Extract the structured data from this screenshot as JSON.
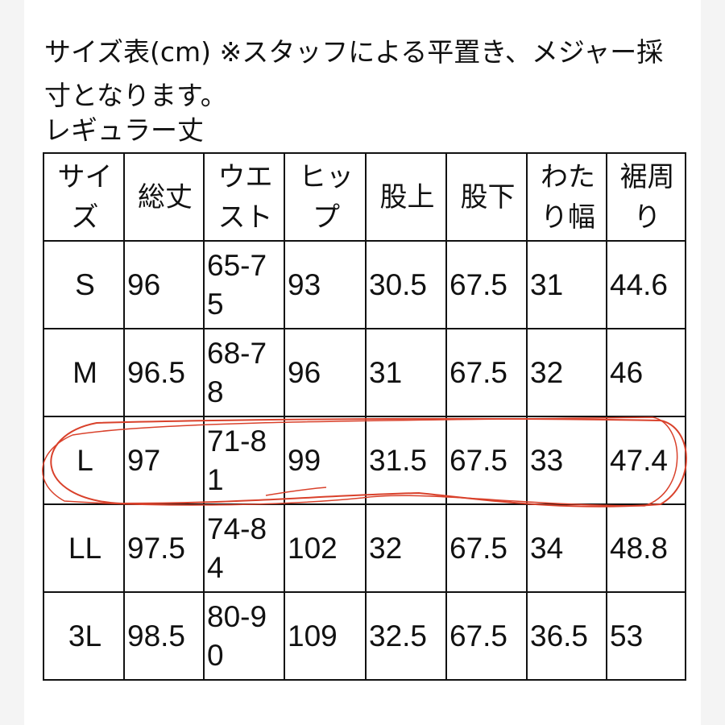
{
  "intro": "サイズ表(cm) ※スタッフによる平置き、メジャー採寸となります。",
  "subtitle": "レギュラー丈",
  "table": {
    "headers": [
      "サイズ",
      "総丈",
      "ウエスト",
      "ヒップ",
      "股上",
      "股下",
      "わたり幅",
      "裾周り"
    ],
    "rows": [
      [
        "S",
        "96",
        "65-75",
        "93",
        "30.5",
        "67.5",
        "31",
        "44.6"
      ],
      [
        "M",
        "96.5",
        "68-78",
        "96",
        "31",
        "67.5",
        "32",
        "46"
      ],
      [
        "L",
        "97",
        "71-81",
        "99",
        "31.5",
        "67.5",
        "33",
        "47.4"
      ],
      [
        "LL",
        "97.5",
        "74-84",
        "102",
        "32",
        "67.5",
        "34",
        "48.8"
      ],
      [
        "3L",
        "98.5",
        "80-90",
        "109",
        "32.5",
        "67.5",
        "36.5",
        "53"
      ]
    ],
    "highlighted_row": "L"
  },
  "colors": {
    "annotation": "#d9412b",
    "border": "#111111"
  }
}
